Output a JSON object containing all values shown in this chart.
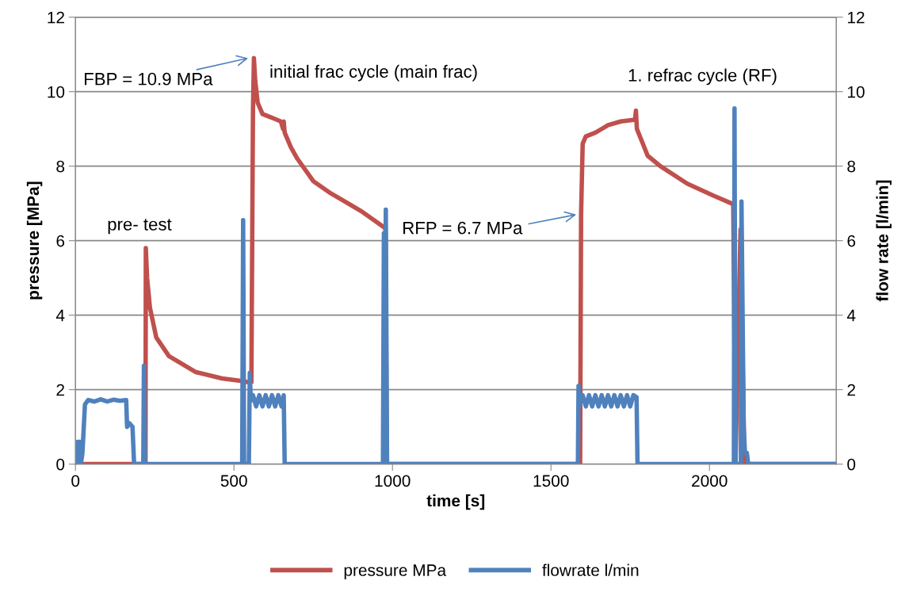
{
  "chart_data": {
    "type": "line",
    "xlabel": "time [s]",
    "ylabel": "pressure [MPa]",
    "y2label": "flow rate [l/min]",
    "xlim": [
      0,
      2400
    ],
    "xticks": [
      0,
      500,
      1000,
      1500,
      2000
    ],
    "ylim": [
      0,
      12
    ],
    "yticks": [
      0,
      2,
      4,
      6,
      8,
      10,
      12
    ],
    "y2lim": [
      0,
      12
    ],
    "y2ticks": [
      0,
      2,
      4,
      6,
      8,
      10,
      12
    ],
    "grid": "y",
    "legend": "bottom",
    "line_style": "solid",
    "marker": "none",
    "series": [
      {
        "name": "pressure MPa",
        "color": "#c0504d",
        "x": [
          30,
          160,
          221,
          222,
          226,
          235,
          255,
          295,
          380,
          462,
          525,
          545,
          555,
          560,
          563,
          567,
          575,
          590,
          620,
          648,
          655,
          657,
          660,
          680,
          700,
          750,
          800,
          900,
          975,
          978,
          982,
          1592,
          1595,
          1600,
          1610,
          1640,
          1680,
          1720,
          1765,
          1768,
          1771,
          1790,
          1805,
          1845,
          1930,
          2012,
          2075,
          2082,
          2098,
          2110,
          2400
        ],
        "values": [
          0,
          0,
          0,
          5.8,
          5.0,
          4.2,
          3.4,
          2.9,
          2.47,
          2.3,
          2.23,
          2.2,
          2.2,
          9.5,
          10.9,
          10.3,
          9.7,
          9.4,
          9.3,
          9.2,
          9.0,
          9.2,
          8.9,
          8.5,
          8.2,
          7.6,
          7.3,
          6.8,
          6.35,
          6.3,
          0,
          0,
          6.7,
          8.6,
          8.8,
          8.9,
          9.1,
          9.2,
          9.25,
          9.49,
          9.0,
          8.6,
          8.28,
          8.0,
          7.53,
          7.21,
          6.98,
          0,
          6.3,
          0,
          0
        ]
      },
      {
        "name": "flowrate l/min",
        "color": "#4f81bd",
        "axis": "y2",
        "x": [
          5,
          7,
          14,
          17,
          22,
          30,
          40,
          60,
          80,
          100,
          120,
          140,
          160,
          163,
          170,
          180,
          185,
          214,
          216,
          219,
          526,
          529,
          532,
          547,
          550,
          553,
          560,
          570,
          580,
          590,
          600,
          610,
          620,
          630,
          640,
          650,
          657,
          660,
          970,
          973,
          976,
          979,
          983,
          1585,
          1587,
          1590,
          1600,
          1610,
          1620,
          1630,
          1640,
          1650,
          1660,
          1670,
          1680,
          1690,
          1700,
          1710,
          1720,
          1730,
          1740,
          1750,
          1760,
          1770,
          1773,
          2077,
          2079,
          2082,
          2099,
          2101,
          2108,
          2112,
          2118,
          2122,
          2400
        ],
        "values": [
          0,
          0.6,
          0.6,
          0,
          0.3,
          1.6,
          1.72,
          1.68,
          1.74,
          1.68,
          1.73,
          1.7,
          1.72,
          1.0,
          1.1,
          1.0,
          0,
          0,
          2.64,
          0,
          0,
          6.55,
          0,
          0,
          2.45,
          1.7,
          1.85,
          1.55,
          1.85,
          1.55,
          1.85,
          1.55,
          1.85,
          1.55,
          1.85,
          1.55,
          1.85,
          0,
          0,
          6.2,
          0,
          6.83,
          0,
          0,
          2.1,
          1.55,
          1.85,
          1.55,
          1.85,
          1.55,
          1.85,
          1.55,
          1.85,
          1.55,
          1.85,
          1.55,
          1.85,
          1.55,
          1.85,
          1.55,
          1.85,
          1.55,
          1.85,
          1.8,
          0,
          0,
          9.55,
          0,
          0,
          7.05,
          1.0,
          0.3,
          0.3,
          0,
          0
        ]
      }
    ],
    "annotations": [
      {
        "text": "FBP = 10.9 MPa",
        "x": 545,
        "y": 10.9
      },
      "initial frac cycle (main frac)",
      "1. refrac cycle (RF)",
      "pre- test",
      "RFP = 6.7 MPa"
    ]
  }
}
